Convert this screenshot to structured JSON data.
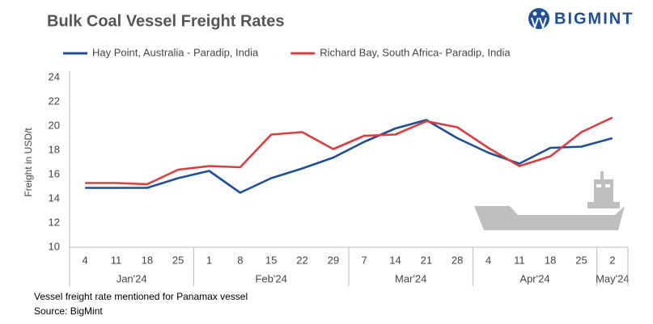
{
  "logo": "BIGMINT",
  "chart_data": {
    "type": "line",
    "title": "Bulk Coal Vessel Freight Rates",
    "y_label": "Freight  in USD/t",
    "categories": [
      "4",
      "11",
      "18",
      "25",
      "1",
      "8",
      "15",
      "22",
      "29",
      "7",
      "14",
      "21",
      "28",
      "4",
      "11",
      "18",
      "25",
      "2"
    ],
    "months": [
      "Jan'24",
      null,
      null,
      null,
      "Feb'24",
      null,
      null,
      null,
      null,
      "Mar'24",
      null,
      null,
      null,
      "Apr'24",
      null,
      null,
      null,
      "May'24"
    ],
    "series": [
      {
        "name": "Hay Point, Australia - Paradip, India",
        "color": "#1f4e99",
        "values": [
          14.9,
          14.9,
          14.9,
          15.7,
          16.3,
          14.5,
          15.7,
          16.5,
          17.4,
          18.7,
          19.8,
          20.5,
          19.0,
          17.8,
          16.9,
          18.2,
          18.3,
          19.0
        ]
      },
      {
        "name": "Richard Bay, South Africa- Paradip, India",
        "color": "#e03c3c",
        "values": [
          15.3,
          15.3,
          15.2,
          16.4,
          16.7,
          16.6,
          19.3,
          19.5,
          18.1,
          19.2,
          19.3,
          20.4,
          19.9,
          18.2,
          16.7,
          17.5,
          19.5,
          20.7
        ]
      }
    ],
    "ylim": [
      10,
      24
    ],
    "yticks": [
      10,
      12,
      14,
      16,
      18,
      20,
      22,
      24
    ],
    "grid": false,
    "note": "Vessel freight rate mentioned for Panamax  vessel",
    "source": "Source:  BigMint"
  }
}
